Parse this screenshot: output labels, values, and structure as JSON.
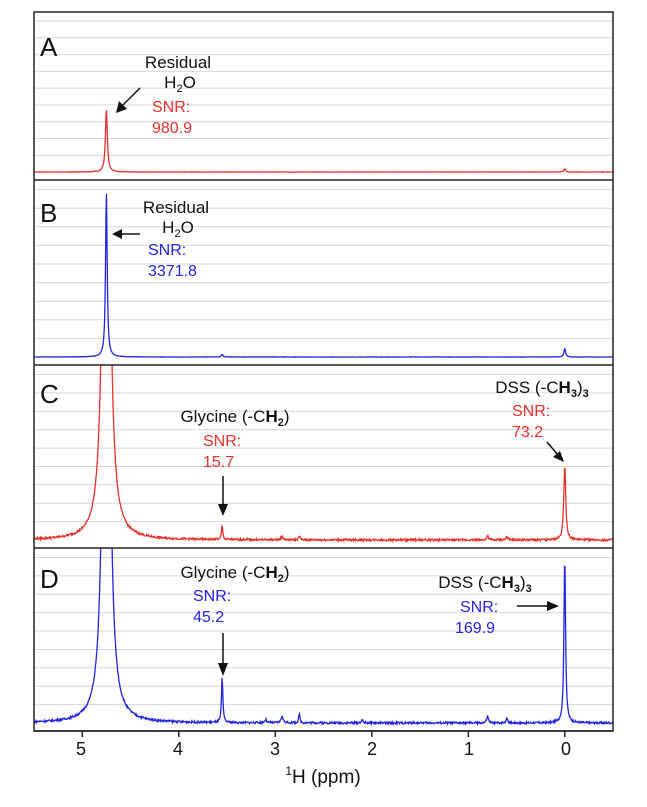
{
  "chart_data": {
    "type": "line",
    "title": "",
    "xlabel_sup": "1",
    "xlabel_main": "H (ppm)",
    "xlim": [
      5.5,
      -0.5
    ],
    "x_ticks": [
      5,
      4,
      3,
      2,
      1,
      0
    ],
    "x_tick_labels": [
      "5",
      "4",
      "3",
      "2",
      "1",
      "0"
    ],
    "grid": "horizontal",
    "colors": {
      "red": "#e8302a",
      "blue": "#2323e6",
      "frame": "#222222",
      "grid": "#d6d6d6",
      "text": "#111111"
    },
    "panels": [
      {
        "id": "A",
        "letter": "A",
        "color": "red",
        "peaks": [
          {
            "ppm": 4.75,
            "height": 0.4,
            "width": 0.012,
            "label": "Residual H2O",
            "snr_label": "SNR:",
            "snr": "980.9"
          },
          {
            "ppm": 0.0,
            "height": 0.02,
            "width": 0.01
          }
        ]
      },
      {
        "id": "B",
        "letter": "B",
        "color": "blue",
        "peaks": [
          {
            "ppm": 4.75,
            "height": 0.96,
            "width": 0.01,
            "label": "Residual H2O",
            "snr_label": "SNR:",
            "snr": "3371.8"
          },
          {
            "ppm": 3.55,
            "height": 0.015,
            "width": 0.01
          },
          {
            "ppm": 0.0,
            "height": 0.05,
            "width": 0.01
          }
        ]
      },
      {
        "id": "C",
        "letter": "C",
        "color": "red",
        "peaks": [
          {
            "ppm": 4.75,
            "height": 5.0,
            "width": 0.03
          },
          {
            "ppm": 3.55,
            "height": 0.08,
            "width": 0.008,
            "label": "Glycine (-CH2)",
            "snr_label": "SNR:",
            "snr": "15.7"
          },
          {
            "ppm": 2.93,
            "height": 0.02,
            "width": 0.012
          },
          {
            "ppm": 2.75,
            "height": 0.025,
            "width": 0.008
          },
          {
            "ppm": 0.8,
            "height": 0.025,
            "width": 0.01
          },
          {
            "ppm": 0.6,
            "height": 0.02,
            "width": 0.01
          },
          {
            "ppm": 0.0,
            "height": 0.44,
            "width": 0.012,
            "label": "DSS (-CH3)3",
            "snr_label": "SNR:",
            "snr": "73.2"
          }
        ]
      },
      {
        "id": "D",
        "letter": "D",
        "color": "blue",
        "peaks": [
          {
            "ppm": 4.75,
            "height": 5.0,
            "width": 0.03
          },
          {
            "ppm": 3.55,
            "height": 0.27,
            "width": 0.008,
            "label": "Glycine (-CH2)",
            "snr_label": "SNR:",
            "snr": "45.2"
          },
          {
            "ppm": 3.1,
            "height": 0.02,
            "width": 0.01
          },
          {
            "ppm": 2.93,
            "height": 0.04,
            "width": 0.012
          },
          {
            "ppm": 2.75,
            "height": 0.05,
            "width": 0.008
          },
          {
            "ppm": 2.1,
            "height": 0.015,
            "width": 0.012
          },
          {
            "ppm": 0.8,
            "height": 0.04,
            "width": 0.01
          },
          {
            "ppm": 0.6,
            "height": 0.03,
            "width": 0.01
          },
          {
            "ppm": 0.0,
            "height": 0.98,
            "width": 0.01,
            "label": "DSS (-CH3)3",
            "snr_label": "SNR:",
            "snr": "169.9"
          }
        ]
      }
    ]
  }
}
